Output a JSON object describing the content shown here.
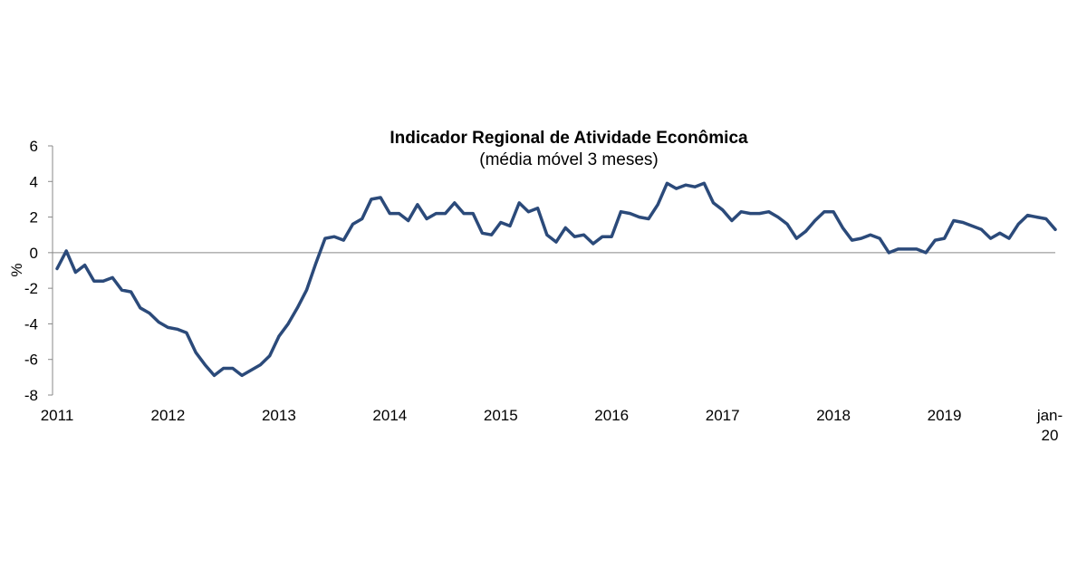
{
  "chart_data": {
    "type": "line",
    "title": "Indicador Regional de Atividade Econômica",
    "subtitle": "(média móvel 3 meses)",
    "ylabel": "%",
    "xlabel": "",
    "ylim": [
      -8,
      6
    ],
    "yticks": [
      "6",
      "4",
      "2",
      "0",
      "-2",
      "-4",
      "-6",
      "-8"
    ],
    "ytick_values": [
      6,
      4,
      2,
      0,
      -2,
      -4,
      -6,
      -8
    ],
    "xticks": [
      {
        "label": "2011",
        "index": 0
      },
      {
        "label": "2012",
        "index": 12
      },
      {
        "label": "2013",
        "index": 24
      },
      {
        "label": "2014",
        "index": 36
      },
      {
        "label": "2015",
        "index": 48
      },
      {
        "label": "2016",
        "index": 60
      },
      {
        "label": "2017",
        "index": 72
      },
      {
        "label": "2018",
        "index": 84
      },
      {
        "label": "2019",
        "index": 96
      }
    ],
    "last_tick": {
      "line1": "jan-",
      "line2": "20",
      "index": 108
    },
    "line_color": "#2b4a7a",
    "grid": false,
    "series": [
      {
        "values": [
          -0.9,
          0.1,
          -1.1,
          -0.7,
          -1.6,
          -1.6,
          -1.4,
          -2.1,
          -2.2,
          -3.1,
          -3.4,
          -3.9,
          -4.2,
          -4.3,
          -4.5,
          -5.6,
          -6.3,
          -6.9,
          -6.5,
          -6.5,
          -6.9,
          -6.6,
          -6.3,
          -5.8,
          -4.7,
          -4.0,
          -3.1,
          -2.1,
          -0.6,
          0.8,
          0.9,
          0.7,
          1.6,
          1.9,
          3.0,
          3.1,
          2.2,
          2.2,
          1.8,
          2.7,
          1.9,
          2.2,
          2.2,
          2.8,
          2.2,
          2.2,
          1.1,
          1.0,
          1.7,
          1.5,
          2.8,
          2.3,
          2.5,
          1.0,
          0.6,
          1.4,
          0.9,
          1.0,
          0.5,
          0.9,
          0.9,
          2.3,
          2.2,
          2.0,
          1.9,
          2.7,
          3.9,
          3.6,
          3.8,
          3.7,
          3.9,
          2.8,
          2.4,
          1.8,
          2.3,
          2.2,
          2.2,
          2.3,
          2.0,
          1.6,
          0.8,
          1.2,
          1.8,
          2.3,
          2.3,
          1.4,
          0.7,
          0.8,
          1.0,
          0.8,
          0.0,
          0.2,
          0.2,
          0.2,
          0.0,
          0.7,
          0.8,
          1.8,
          1.7,
          1.5,
          1.3,
          0.8,
          1.1,
          0.8,
          1.6,
          2.1,
          2.0,
          1.9,
          1.3
        ]
      }
    ]
  }
}
